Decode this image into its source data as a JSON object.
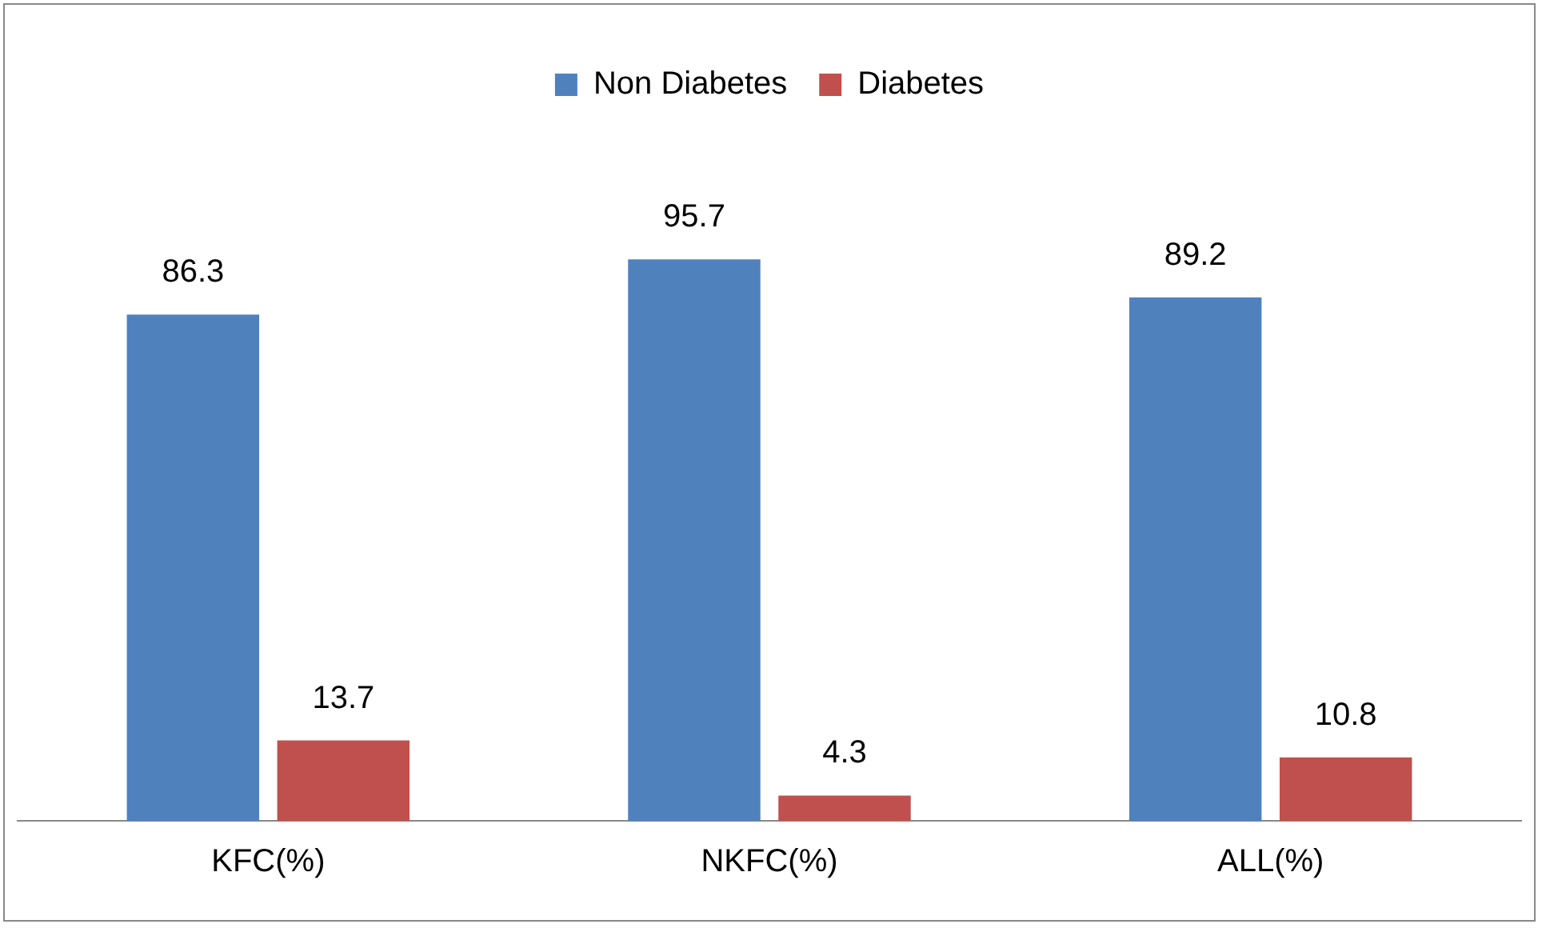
{
  "chart_data": {
    "type": "bar",
    "categories": [
      "KFC(%)",
      "NKFC(%)",
      "ALL(%)"
    ],
    "series": [
      {
        "name": "Non Diabetes",
        "color": "#4f81bd",
        "values": [
          86.3,
          95.7,
          89.2
        ]
      },
      {
        "name": "Diabetes",
        "color": "#c0504d",
        "values": [
          13.7,
          4.3,
          10.8
        ]
      }
    ],
    "data_labels": true,
    "legend": "top",
    "grid": false
  }
}
